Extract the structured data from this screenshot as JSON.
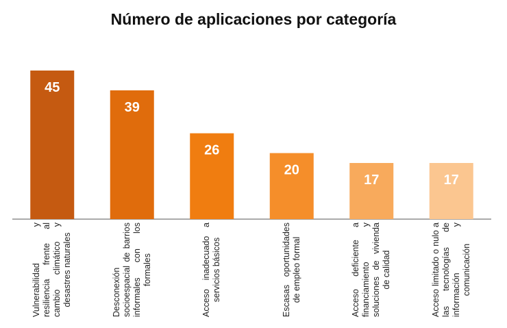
{
  "chart_data": {
    "type": "bar",
    "title": "Número de aplicaciones por categoría",
    "categories": [
      "Vulnerabilidad y resiliencia frente al cambio climático y desastres naturales",
      "Desconexión socioespacial de barrios informales con los formales",
      "Acceso inadecuado a servicios básicos",
      "Escasas oportunidades de empleo formal",
      "Acceso deficiente a financiamiento y soluciones de vivienda de calidad",
      "Acceso limitado o nulo a las tecnologías de información y comunicación"
    ],
    "values": [
      45,
      39,
      26,
      20,
      17,
      17
    ],
    "colors": [
      "#c55a11",
      "#e06c0c",
      "#f07d10",
      "#f58e2a",
      "#f8aa5c",
      "#fbc690"
    ]
  }
}
